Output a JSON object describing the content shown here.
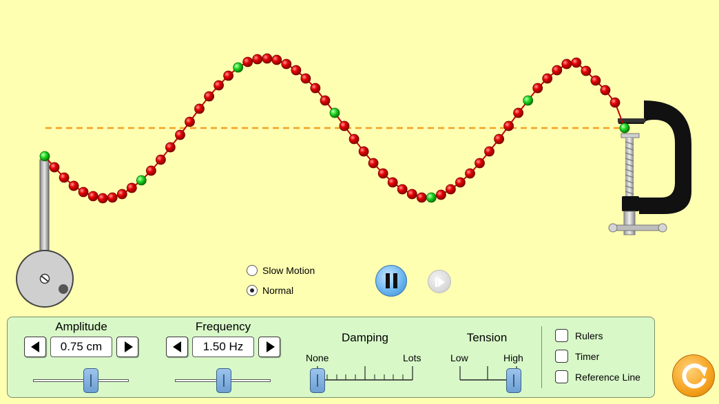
{
  "playback": {
    "speed_options": [
      {
        "label": "Slow Motion",
        "selected": false
      },
      {
        "label": "Normal",
        "selected": true
      }
    ],
    "pause_icon": "pause-icon",
    "step_icon": "step-forward-icon"
  },
  "controls": {
    "amplitude": {
      "title": "Amplitude",
      "value": "0.75 cm",
      "slider_fraction": 0.5
    },
    "frequency": {
      "title": "Frequency",
      "value": "1.50 Hz",
      "slider_fraction": 0.5
    },
    "damping": {
      "title": "Damping",
      "min_label": "None",
      "max_label": "Lots",
      "slider_fraction": 0.0
    },
    "tension": {
      "title": "Tension",
      "min_label": "Low",
      "max_label": "High",
      "slider_fraction": 1.0
    }
  },
  "options": {
    "rulers": {
      "label": "Rulers",
      "checked": false
    },
    "timer": {
      "label": "Timer",
      "checked": false
    },
    "reference_line": {
      "label": "Reference Line",
      "checked": false
    }
  },
  "colors": {
    "background": "#ffffb2",
    "bead": "#e00000",
    "highlight_bead": "#19d219",
    "reference_line": "#f0a020",
    "panel": "#d8f8c8",
    "slider_thumb": "#7aaee0",
    "reset": "#f5a21e"
  },
  "reset_icon": "reset-icon"
}
